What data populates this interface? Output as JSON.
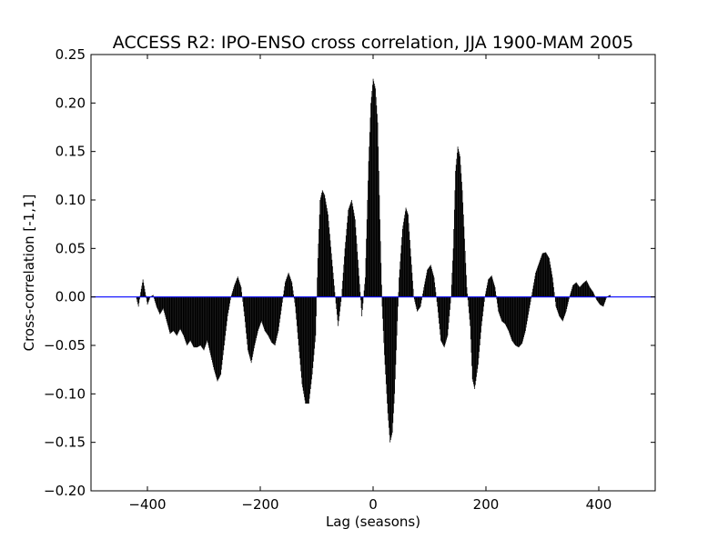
{
  "chart_data": {
    "type": "bar",
    "title": "ACCESS R2: IPO-ENSO cross correlation, JJA 1900-MAM 2005",
    "xlabel": "Lag (seasons)",
    "ylabel": "Cross-correlation [-1,1]",
    "xlim": [
      -500,
      500
    ],
    "ylim": [
      -0.2,
      0.25
    ],
    "xticks": [
      -400,
      -200,
      0,
      200,
      400
    ],
    "xtick_labels": [
      "−400",
      "−200",
      "0",
      "200",
      "400"
    ],
    "yticks": [
      -0.2,
      -0.15,
      -0.1,
      -0.05,
      0.0,
      0.05,
      0.1,
      0.15,
      0.2,
      0.25
    ],
    "ytick_labels": [
      "−0.20",
      "−0.15",
      "−0.10",
      "−0.05",
      "0.00",
      "0.05",
      "0.10",
      "0.15",
      "0.20",
      "0.25"
    ],
    "grid": false,
    "bar_color": "#000000",
    "zero_line_color": "#0000ff",
    "lag_range": [
      -420,
      420
    ],
    "envelope_points": [
      [
        -420,
        0.0
      ],
      [
        -416,
        -0.01
      ],
      [
        -412,
        0.005
      ],
      [
        -408,
        0.018
      ],
      [
        -404,
        0.005
      ],
      [
        -400,
        -0.008
      ],
      [
        -395,
        0.0
      ],
      [
        -390,
        0.002
      ],
      [
        -384,
        -0.01
      ],
      [
        -378,
        -0.018
      ],
      [
        -372,
        -0.012
      ],
      [
        -366,
        -0.025
      ],
      [
        -360,
        -0.038
      ],
      [
        -354,
        -0.035
      ],
      [
        -348,
        -0.04
      ],
      [
        -342,
        -0.033
      ],
      [
        -336,
        -0.04
      ],
      [
        -330,
        -0.05
      ],
      [
        -324,
        -0.045
      ],
      [
        -318,
        -0.052
      ],
      [
        -312,
        -0.052
      ],
      [
        -306,
        -0.05
      ],
      [
        -300,
        -0.055
      ],
      [
        -294,
        -0.045
      ],
      [
        -288,
        -0.06
      ],
      [
        -282,
        -0.075
      ],
      [
        -276,
        -0.087
      ],
      [
        -270,
        -0.08
      ],
      [
        -264,
        -0.05
      ],
      [
        -258,
        -0.02
      ],
      [
        -252,
        0.0
      ],
      [
        -246,
        0.012
      ],
      [
        -240,
        0.021
      ],
      [
        -234,
        0.01
      ],
      [
        -228,
        -0.02
      ],
      [
        -222,
        -0.055
      ],
      [
        -216,
        -0.068
      ],
      [
        -210,
        -0.05
      ],
      [
        -204,
        -0.035
      ],
      [
        -198,
        -0.025
      ],
      [
        -192,
        -0.035
      ],
      [
        -186,
        -0.04
      ],
      [
        -180,
        -0.047
      ],
      [
        -174,
        -0.05
      ],
      [
        -168,
        -0.035
      ],
      [
        -162,
        -0.01
      ],
      [
        -156,
        0.015
      ],
      [
        -150,
        0.025
      ],
      [
        -144,
        0.015
      ],
      [
        -138,
        -0.01
      ],
      [
        -132,
        -0.05
      ],
      [
        -126,
        -0.09
      ],
      [
        -120,
        -0.11
      ],
      [
        -114,
        -0.11
      ],
      [
        -108,
        -0.08
      ],
      [
        -102,
        -0.04
      ],
      [
        -98,
        0.04
      ],
      [
        -94,
        0.1
      ],
      [
        -90,
        0.11
      ],
      [
        -86,
        0.105
      ],
      [
        -80,
        0.085
      ],
      [
        -74,
        0.045
      ],
      [
        -68,
        0.005
      ],
      [
        -62,
        -0.03
      ],
      [
        -56,
        0.0
      ],
      [
        -50,
        0.05
      ],
      [
        -44,
        0.09
      ],
      [
        -38,
        0.1
      ],
      [
        -32,
        0.08
      ],
      [
        -26,
        0.03
      ],
      [
        -20,
        -0.02
      ],
      [
        -14,
        0.02
      ],
      [
        -8,
        0.14
      ],
      [
        -4,
        0.2
      ],
      [
        0,
        0.225
      ],
      [
        4,
        0.215
      ],
      [
        8,
        0.18
      ],
      [
        12,
        0.08
      ],
      [
        16,
        -0.01
      ],
      [
        20,
        -0.06
      ],
      [
        26,
        -0.12
      ],
      [
        30,
        -0.15
      ],
      [
        34,
        -0.14
      ],
      [
        38,
        -0.1
      ],
      [
        42,
        -0.04
      ],
      [
        46,
        0.02
      ],
      [
        52,
        0.07
      ],
      [
        58,
        0.092
      ],
      [
        62,
        0.085
      ],
      [
        66,
        0.05
      ],
      [
        72,
        0.0
      ],
      [
        78,
        -0.015
      ],
      [
        84,
        -0.01
      ],
      [
        90,
        0.01
      ],
      [
        96,
        0.028
      ],
      [
        102,
        0.033
      ],
      [
        108,
        0.02
      ],
      [
        114,
        -0.01
      ],
      [
        120,
        -0.045
      ],
      [
        126,
        -0.052
      ],
      [
        132,
        -0.04
      ],
      [
        138,
        0.0
      ],
      [
        142,
        0.05
      ],
      [
        146,
        0.13
      ],
      [
        150,
        0.155
      ],
      [
        154,
        0.145
      ],
      [
        158,
        0.11
      ],
      [
        162,
        0.06
      ],
      [
        166,
        0.01
      ],
      [
        172,
        -0.03
      ],
      [
        176,
        -0.085
      ],
      [
        180,
        -0.095
      ],
      [
        186,
        -0.07
      ],
      [
        192,
        -0.03
      ],
      [
        198,
        0.0
      ],
      [
        204,
        0.018
      ],
      [
        210,
        0.022
      ],
      [
        216,
        0.01
      ],
      [
        222,
        -0.015
      ],
      [
        228,
        -0.025
      ],
      [
        234,
        -0.028
      ],
      [
        240,
        -0.035
      ],
      [
        246,
        -0.045
      ],
      [
        252,
        -0.05
      ],
      [
        258,
        -0.052
      ],
      [
        264,
        -0.048
      ],
      [
        270,
        -0.035
      ],
      [
        276,
        -0.015
      ],
      [
        282,
        0.005
      ],
      [
        288,
        0.025
      ],
      [
        294,
        0.035
      ],
      [
        300,
        0.045
      ],
      [
        306,
        0.046
      ],
      [
        312,
        0.04
      ],
      [
        318,
        0.02
      ],
      [
        324,
        -0.01
      ],
      [
        330,
        -0.02
      ],
      [
        336,
        -0.025
      ],
      [
        342,
        -0.015
      ],
      [
        348,
        0.0
      ],
      [
        354,
        0.012
      ],
      [
        360,
        0.015
      ],
      [
        366,
        0.01
      ],
      [
        372,
        0.014
      ],
      [
        378,
        0.017
      ],
      [
        384,
        0.01
      ],
      [
        390,
        0.005
      ],
      [
        396,
        -0.003
      ],
      [
        402,
        -0.008
      ],
      [
        408,
        -0.01
      ],
      [
        414,
        0.0
      ],
      [
        420,
        0.002
      ]
    ]
  }
}
